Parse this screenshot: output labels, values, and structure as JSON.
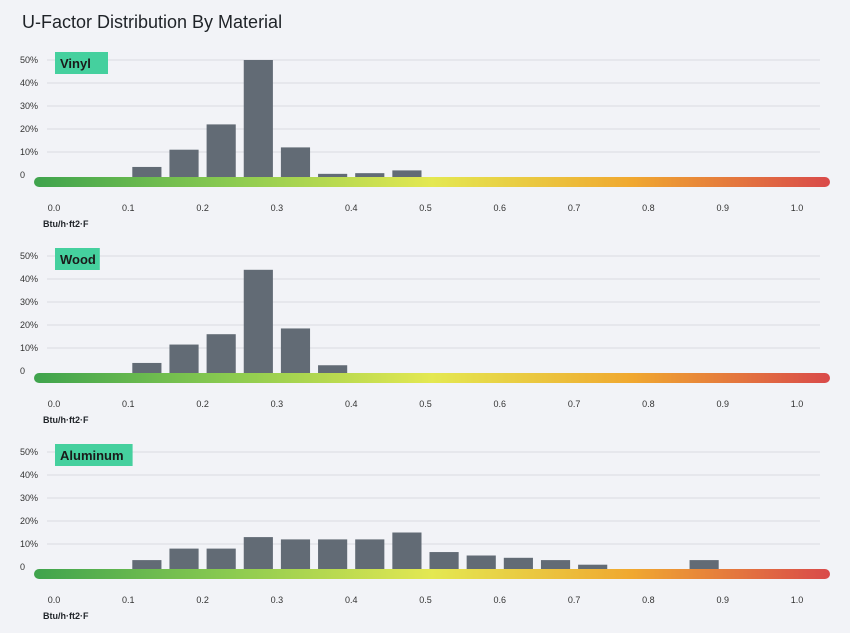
{
  "page": {
    "title": "U-Factor Distribution By Material"
  },
  "colors": {
    "bar": "#626b75",
    "grid": "#d9dbe0",
    "label_bg": "#45d09e",
    "gradient": [
      "#3fa34d",
      "#8ccb50",
      "#e4e851",
      "#f0a830",
      "#d94a4a"
    ]
  },
  "chart_data": [
    {
      "type": "bar",
      "title": "Vinyl",
      "xlabel": "Btu/h·ft2·F",
      "ylabel": "",
      "ylim": [
        0,
        50
      ],
      "xlim": [
        0,
        1.0
      ],
      "y_ticks": [
        "0",
        "10%",
        "20%",
        "30%",
        "40%",
        "50%"
      ],
      "x_ticks": [
        "0.0",
        "0.1",
        "0.2",
        "0.3",
        "0.4",
        "0.5",
        "0.6",
        "0.7",
        "0.8",
        "0.9",
        "1.0"
      ],
      "bin_width": 0.05,
      "bins": [
        0.1,
        0.15,
        0.2,
        0.25,
        0.3,
        0.35,
        0.4,
        0.45
      ],
      "values": [
        3.5,
        11,
        22,
        50,
        12,
        0.5,
        0.8,
        2
      ]
    },
    {
      "type": "bar",
      "title": "Wood",
      "xlabel": "Btu/h·ft2·F",
      "ylabel": "",
      "ylim": [
        0,
        50
      ],
      "xlim": [
        0,
        1.0
      ],
      "y_ticks": [
        "0",
        "10%",
        "20%",
        "30%",
        "40%",
        "50%"
      ],
      "x_ticks": [
        "0.0",
        "0.1",
        "0.2",
        "0.3",
        "0.4",
        "0.5",
        "0.6",
        "0.7",
        "0.8",
        "0.9",
        "1.0"
      ],
      "bin_width": 0.05,
      "bins": [
        0.1,
        0.15,
        0.2,
        0.25,
        0.3,
        0.35
      ],
      "values": [
        3.5,
        11.5,
        16,
        44,
        18.5,
        2.5
      ]
    },
    {
      "type": "bar",
      "title": "Aluminum",
      "xlabel": "Btu/h·ft2·F",
      "ylabel": "",
      "ylim": [
        0,
        50
      ],
      "xlim": [
        0,
        1.0
      ],
      "y_ticks": [
        "0",
        "10%",
        "20%",
        "30%",
        "40%",
        "50%"
      ],
      "x_ticks": [
        "0.0",
        "0.1",
        "0.2",
        "0.3",
        "0.4",
        "0.5",
        "0.6",
        "0.7",
        "0.8",
        "0.9",
        "1.0"
      ],
      "bin_width": 0.05,
      "bins": [
        0.1,
        0.15,
        0.2,
        0.25,
        0.3,
        0.35,
        0.4,
        0.45,
        0.5,
        0.55,
        0.6,
        0.65,
        0.7,
        0.85
      ],
      "values": [
        3,
        8,
        8,
        13,
        12,
        12,
        12,
        15,
        6.5,
        5,
        4,
        3,
        1,
        3
      ]
    }
  ]
}
